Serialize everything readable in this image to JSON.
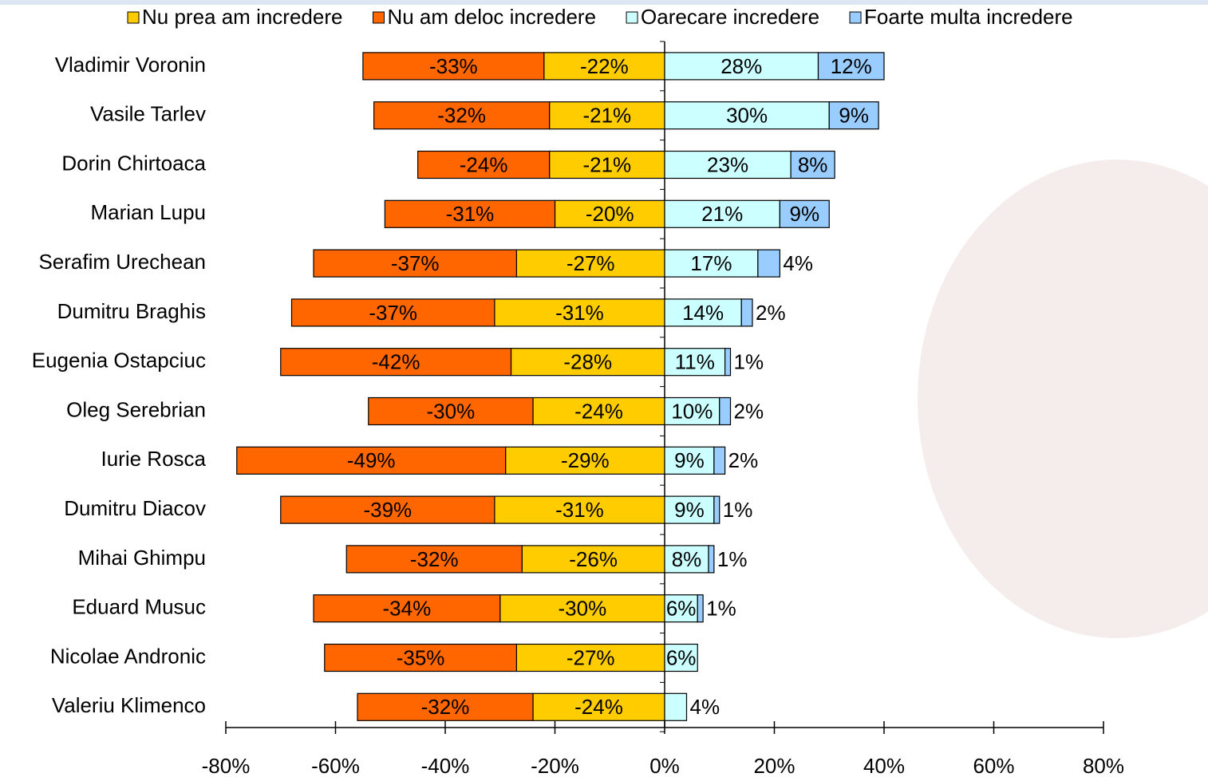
{
  "chart_data": {
    "type": "bar",
    "orientation": "horizontal",
    "stacked": "diverging",
    "categories": [
      "Vladimir Voronin",
      "Vasile Tarlev",
      "Dorin Chirtoaca",
      "Marian Lupu",
      "Serafim Urechean",
      "Dumitru Braghis",
      "Eugenia Ostapciuc",
      "Oleg Serebrian",
      "Iurie Rosca",
      "Dumitru Diacov",
      "Mihai Ghimpu",
      "Eduard  Musuc",
      "Nicolae Andronic",
      "Valeriu Klimenco"
    ],
    "series": [
      {
        "name": "Nu prea am incredere",
        "color": "#ffcc00",
        "values": [
          -22,
          -21,
          -21,
          -20,
          -27,
          -31,
          -28,
          -24,
          -29,
          -31,
          -26,
          -30,
          -27,
          -24
        ],
        "value_labels": [
          "-22%",
          "-21%",
          "-21%",
          "-20%",
          "-27%",
          "-31%",
          "-28%",
          "-24%",
          "-29%",
          "-31%",
          "-26%",
          "-30%",
          "-27%",
          "-24%"
        ]
      },
      {
        "name": "Nu am deloc incredere",
        "color": "#ff6600",
        "values": [
          -33,
          -32,
          -24,
          -31,
          -37,
          -37,
          -42,
          -30,
          -49,
          -39,
          -32,
          -34,
          -35,
          -32
        ],
        "value_labels": [
          "-33%",
          "-32%",
          "-24%",
          "-31%",
          "-37%",
          "-37%",
          "-42%",
          "-30%",
          "-49%",
          "-39%",
          "-32%",
          "-34%",
          "-35%",
          "-32%"
        ]
      },
      {
        "name": "Oarecare incredere",
        "color": "#ccffff",
        "values": [
          28,
          30,
          23,
          21,
          17,
          14,
          11,
          10,
          9,
          9,
          8,
          6,
          6,
          4
        ],
        "value_labels": [
          "28%",
          "30%",
          "23%",
          "21%",
          "17%",
          "14%",
          "11%",
          "10%",
          "9%",
          "9%",
          "8%",
          "6%",
          "6%",
          "4%"
        ]
      },
      {
        "name": "Foarte multa incredere",
        "color": "#99ccff",
        "values": [
          12,
          9,
          8,
          9,
          4,
          2,
          1,
          2,
          2,
          1,
          1,
          1,
          null,
          null
        ],
        "value_labels": [
          "12%",
          "9%",
          "8%",
          "9%",
          "4%",
          "2%",
          "1%",
          "2%",
          "2%",
          "1%",
          "1%",
          "1%",
          null,
          null
        ]
      }
    ],
    "xlim": [
      -80,
      80
    ],
    "xticks": [
      {
        "value": -80,
        "label": "-80%"
      },
      {
        "value": -60,
        "label": "-60%"
      },
      {
        "value": -40,
        "label": "-40%"
      },
      {
        "value": -20,
        "label": "-20%"
      },
      {
        "value": 0,
        "label": "0%"
      },
      {
        "value": 20,
        "label": "20%"
      },
      {
        "value": 40,
        "label": "40%"
      },
      {
        "value": 60,
        "label": "60%"
      },
      {
        "value": 80,
        "label": "80%"
      }
    ]
  }
}
